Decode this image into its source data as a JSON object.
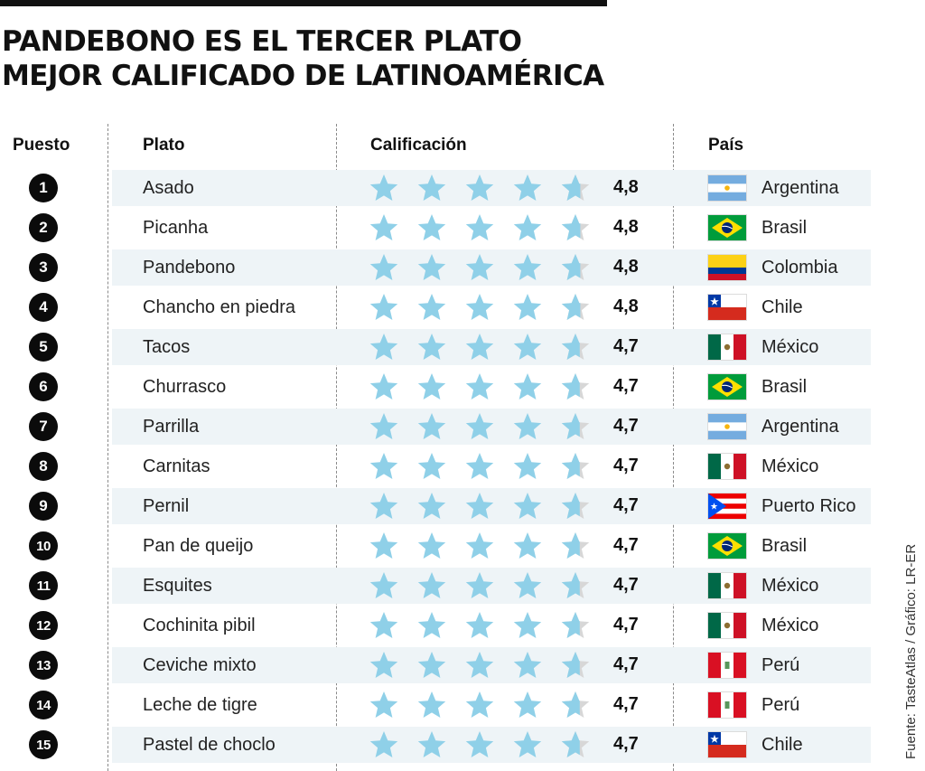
{
  "title": {
    "line1": "PANDEBONO ES EL TERCER PLATO",
    "line2": "MEJOR CALIFICADO DE LATINOAMÉRICA"
  },
  "columns": {
    "rank": "Puesto",
    "dish": "Plato",
    "rating": "Calificación",
    "country": "País"
  },
  "source": "Fuente: TasteAtlas  / Gráfico: LR-ER",
  "colors": {
    "star_fill": "#8fd0e8",
    "star_empty": "#d7d7d7",
    "row_shade": "#eef4f7",
    "badge": "#0b0b0b"
  },
  "chart_data": {
    "type": "table",
    "title": "PANDEBONO ES EL TERCER PLATO MEJOR CALIFICADO DE LATINOAMÉRICA",
    "rating_scale_max": 5,
    "rows": [
      {
        "rank": "1",
        "dish": "Asado",
        "rating": 4.8,
        "rating_label": "4,8",
        "country": "Argentina",
        "flag": "argentina-flag"
      },
      {
        "rank": "2",
        "dish": "Picanha",
        "rating": 4.8,
        "rating_label": "4,8",
        "country": "Brasil",
        "flag": "brazil-flag"
      },
      {
        "rank": "3",
        "dish": "Pandebono",
        "rating": 4.8,
        "rating_label": "4,8",
        "country": "Colombia",
        "flag": "colombia-flag"
      },
      {
        "rank": "4",
        "dish": "Chancho en piedra",
        "rating": 4.8,
        "rating_label": "4,8",
        "country": "Chile",
        "flag": "chile-flag"
      },
      {
        "rank": "5",
        "dish": "Tacos",
        "rating": 4.7,
        "rating_label": "4,7",
        "country": "México",
        "flag": "mexico-flag"
      },
      {
        "rank": "6",
        "dish": "Churrasco",
        "rating": 4.7,
        "rating_label": "4,7",
        "country": "Brasil",
        "flag": "brazil-flag"
      },
      {
        "rank": "7",
        "dish": "Parrilla",
        "rating": 4.7,
        "rating_label": "4,7",
        "country": "Argentina",
        "flag": "argentina-flag"
      },
      {
        "rank": "8",
        "dish": "Carnitas",
        "rating": 4.7,
        "rating_label": "4,7",
        "country": "México",
        "flag": "mexico-flag"
      },
      {
        "rank": "9",
        "dish": "Pernil",
        "rating": 4.7,
        "rating_label": "4,7",
        "country": "Puerto Rico",
        "flag": "puerto-rico-flag"
      },
      {
        "rank": "10",
        "dish": "Pan de queijo",
        "rating": 4.7,
        "rating_label": "4,7",
        "country": "Brasil",
        "flag": "brazil-flag"
      },
      {
        "rank": "11",
        "dish": "Esquites",
        "rating": 4.7,
        "rating_label": "4,7",
        "country": "México",
        "flag": "mexico-flag"
      },
      {
        "rank": "12",
        "dish": "Cochinita pibil",
        "rating": 4.7,
        "rating_label": "4,7",
        "country": "México",
        "flag": "mexico-flag"
      },
      {
        "rank": "13",
        "dish": "Ceviche mixto",
        "rating": 4.7,
        "rating_label": "4,7",
        "country": "Perú",
        "flag": "peru-flag"
      },
      {
        "rank": "14",
        "dish": "Leche de tigre",
        "rating": 4.7,
        "rating_label": "4,7",
        "country": "Perú",
        "flag": "peru-flag"
      },
      {
        "rank": "15",
        "dish": "Pastel de choclo",
        "rating": 4.7,
        "rating_label": "4,7",
        "country": "Chile",
        "flag": "chile-flag"
      }
    ]
  }
}
